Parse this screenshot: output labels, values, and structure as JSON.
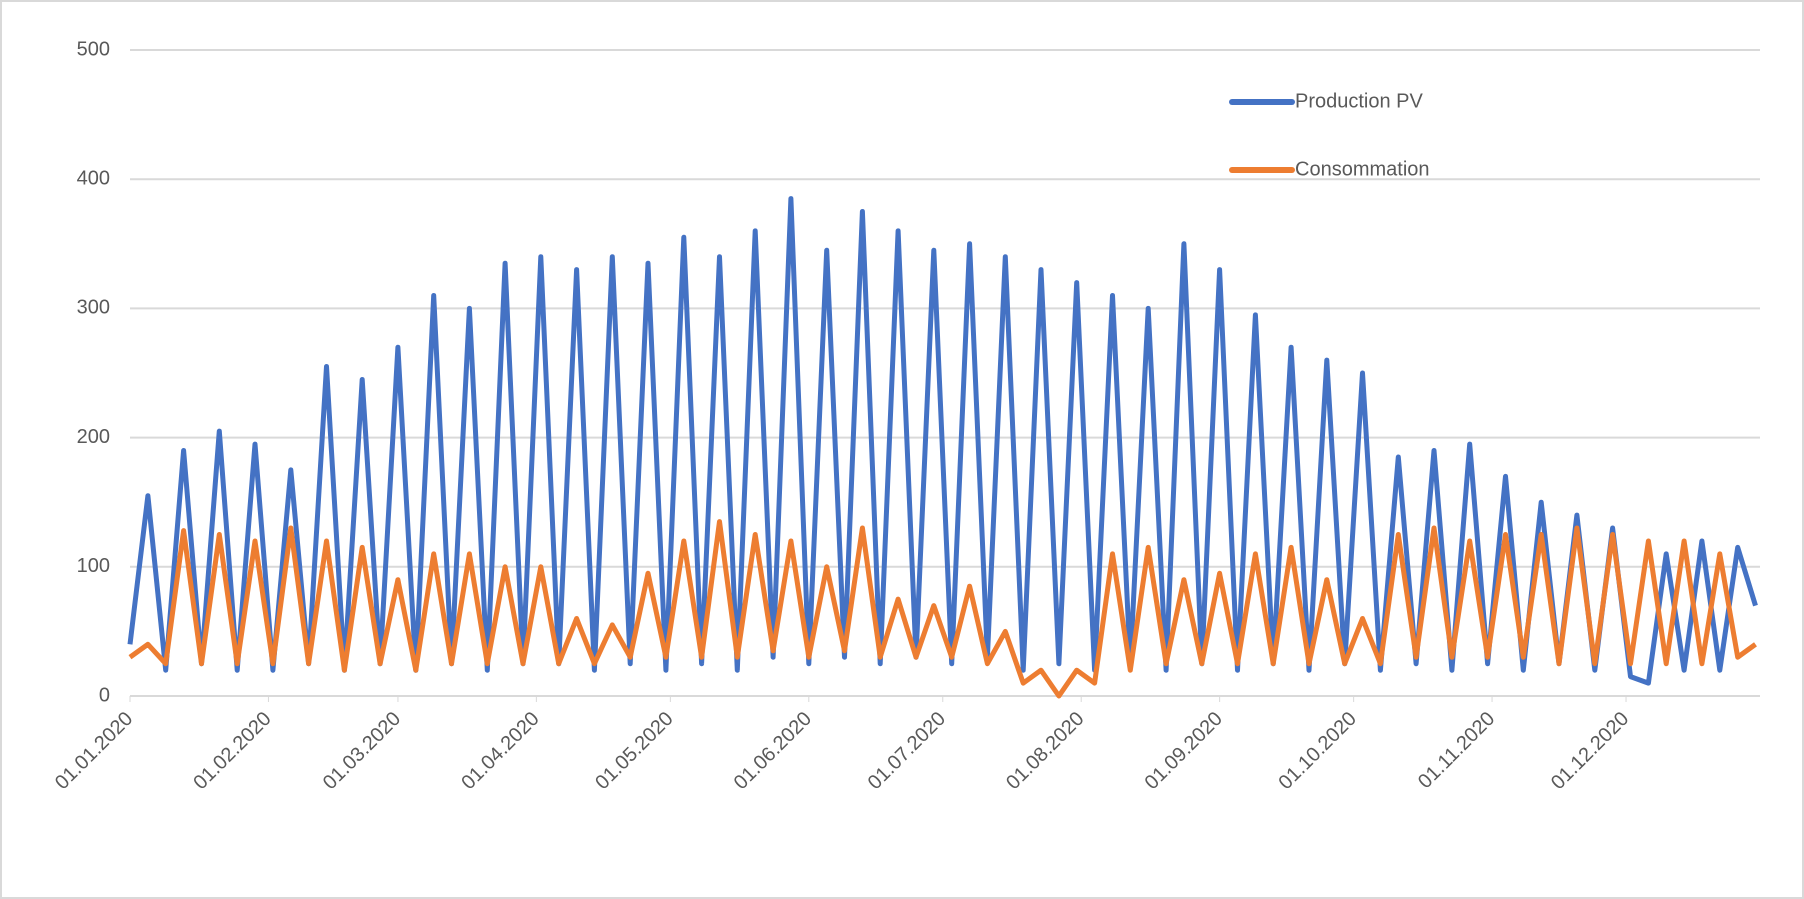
{
  "chart_data": {
    "type": "line",
    "x": [
      "01.01.2020",
      "05.01.2020",
      "09.01.2020",
      "13.01.2020",
      "17.01.2020",
      "21.01.2020",
      "25.01.2020",
      "29.01.2020",
      "02.02.2020",
      "06.02.2020",
      "10.02.2020",
      "14.02.2020",
      "18.02.2020",
      "22.02.2020",
      "26.02.2020",
      "01.03.2020",
      "05.03.2020",
      "09.03.2020",
      "13.03.2020",
      "17.03.2020",
      "21.03.2020",
      "25.03.2020",
      "29.03.2020",
      "02.04.2020",
      "06.04.2020",
      "10.04.2020",
      "14.04.2020",
      "18.04.2020",
      "22.04.2020",
      "26.04.2020",
      "30.04.2020",
      "04.05.2020",
      "08.05.2020",
      "12.05.2020",
      "16.05.2020",
      "20.05.2020",
      "24.05.2020",
      "28.05.2020",
      "01.06.2020",
      "05.06.2020",
      "09.06.2020",
      "13.06.2020",
      "17.06.2020",
      "21.06.2020",
      "25.06.2020",
      "29.06.2020",
      "03.07.2020",
      "07.07.2020",
      "11.07.2020",
      "15.07.2020",
      "19.07.2020",
      "23.07.2020",
      "27.07.2020",
      "31.07.2020",
      "04.08.2020",
      "08.08.2020",
      "12.08.2020",
      "16.08.2020",
      "20.08.2020",
      "24.08.2020",
      "28.08.2020",
      "01.09.2020",
      "05.09.2020",
      "09.09.2020",
      "13.09.2020",
      "17.09.2020",
      "21.09.2020",
      "25.09.2020",
      "29.09.2020",
      "03.10.2020",
      "07.10.2020",
      "11.10.2020",
      "15.10.2020",
      "19.10.2020",
      "23.10.2020",
      "27.10.2020",
      "31.10.2020",
      "04.11.2020",
      "08.11.2020",
      "12.11.2020",
      "16.11.2020",
      "20.11.2020",
      "24.11.2020",
      "28.11.2020",
      "02.12.2020",
      "06.12.2020",
      "10.12.2020",
      "14.12.2020",
      "18.12.2020",
      "22.12.2020",
      "26.12.2020",
      "30.12.2020"
    ],
    "series": [
      {
        "name": "Production PV",
        "color": "#4472c4",
        "values": [
          40,
          155,
          20,
          190,
          25,
          205,
          20,
          195,
          20,
          175,
          25,
          255,
          20,
          245,
          25,
          270,
          20,
          310,
          25,
          300,
          20,
          335,
          25,
          340,
          25,
          330,
          20,
          340,
          25,
          335,
          20,
          355,
          25,
          340,
          20,
          360,
          30,
          385,
          25,
          345,
          30,
          375,
          25,
          360,
          30,
          345,
          25,
          350,
          30,
          340,
          20,
          330,
          25,
          320,
          20,
          310,
          25,
          300,
          20,
          350,
          25,
          330,
          20,
          295,
          25,
          270,
          20,
          260,
          25,
          250,
          20,
          185,
          25,
          190,
          20,
          195,
          25,
          170,
          20,
          150,
          25,
          140,
          20,
          130,
          15,
          10,
          110,
          20,
          120,
          20,
          115,
          70
        ]
      },
      {
        "name": "Consommation",
        "color": "#ed7d31",
        "values": [
          30,
          40,
          25,
          128,
          25,
          125,
          25,
          120,
          25,
          130,
          25,
          120,
          20,
          115,
          25,
          90,
          20,
          110,
          25,
          110,
          25,
          100,
          25,
          100,
          25,
          60,
          25,
          55,
          30,
          95,
          30,
          120,
          30,
          135,
          30,
          125,
          35,
          120,
          30,
          100,
          35,
          130,
          30,
          75,
          30,
          70,
          30,
          85,
          25,
          50,
          10,
          20,
          0,
          20,
          10,
          110,
          20,
          115,
          25,
          90,
          25,
          95,
          25,
          110,
          25,
          115,
          25,
          90,
          25,
          60,
          25,
          125,
          30,
          130,
          30,
          120,
          30,
          125,
          30,
          125,
          25,
          130,
          25,
          125,
          25,
          120,
          25,
          120,
          25,
          110,
          30,
          40
        ]
      }
    ],
    "xlim": [
      "01.01.2020",
      "31.12.2020"
    ],
    "xticks": [
      "01.01.2020",
      "01.02.2020",
      "01.03.2020",
      "01.04.2020",
      "01.05.2020",
      "01.06.2020",
      "01.07.2020",
      "01.08.2020",
      "01.09.2020",
      "01.10.2020",
      "01.11.2020",
      "01.12.2020"
    ],
    "ylim": [
      0,
      500
    ],
    "yticks": [
      0,
      100,
      200,
      300,
      400,
      500
    ],
    "grid": true,
    "legend": "upper right"
  }
}
